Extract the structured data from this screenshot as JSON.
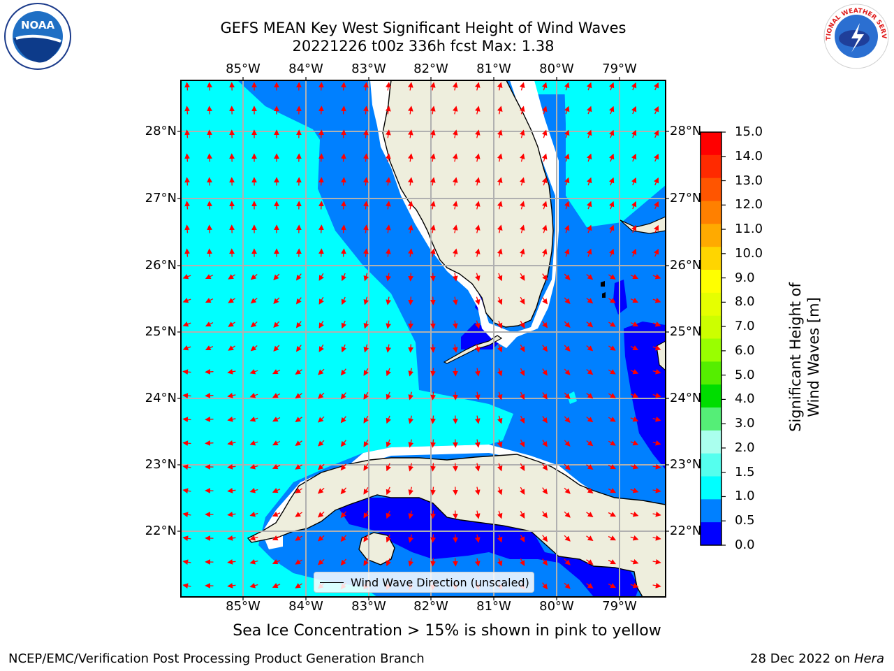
{
  "title": {
    "line1": "GEFS MEAN Key West Significant Height of Wind Waves",
    "line2": "20221226 t00z 336h fcst   Max: 1.38"
  },
  "axes": {
    "lon_ticks": [
      "85°W",
      "84°W",
      "83°W",
      "82°W",
      "81°W",
      "80°W",
      "79°W"
    ],
    "lat_ticks": [
      "28°N",
      "27°N",
      "26°N",
      "25°N",
      "24°N",
      "23°N",
      "22°N"
    ]
  },
  "colorbar": {
    "title": "Significant Height of Wind Waves [m]",
    "ticks": [
      "15.0",
      "14.0",
      "13.0",
      "12.0",
      "11.0",
      "10.0",
      "9.0",
      "8.0",
      "7.0",
      "6.0",
      "5.0",
      "4.0",
      "3.0",
      "2.0",
      "1.5",
      "1.0",
      "0.5",
      "0.0"
    ],
    "colors": [
      "#ff0000",
      "#ff2a00",
      "#ff5500",
      "#ff8000",
      "#ffaa00",
      "#ffd500",
      "#ffff00",
      "#e6ff00",
      "#ccff00",
      "#99ff00",
      "#55ee00",
      "#00dd00",
      "#55ee77",
      "#aaffee",
      "#55ffee",
      "#00ffff",
      "#0080ff",
      "#0000ff"
    ]
  },
  "legend": {
    "label": "Wind Wave Direction (unscaled)"
  },
  "ice_note": "Sea Ice Concentration > 15% is shown in pink to yellow",
  "footer": {
    "left": "NCEP/EMC/Verification Post Processing Product Generation Branch",
    "date": "28 Dec 2022 on",
    "machine": "Hera"
  },
  "logos": {
    "left": "noaa-logo",
    "right": "national-weather-service-logo"
  },
  "map_colors": {
    "land": "#eeeedd",
    "band_0_05": "#0000ff",
    "band_05_10": "#0080ff",
    "band_10_15": "#00ffff",
    "arrows": "#ff0000"
  }
}
